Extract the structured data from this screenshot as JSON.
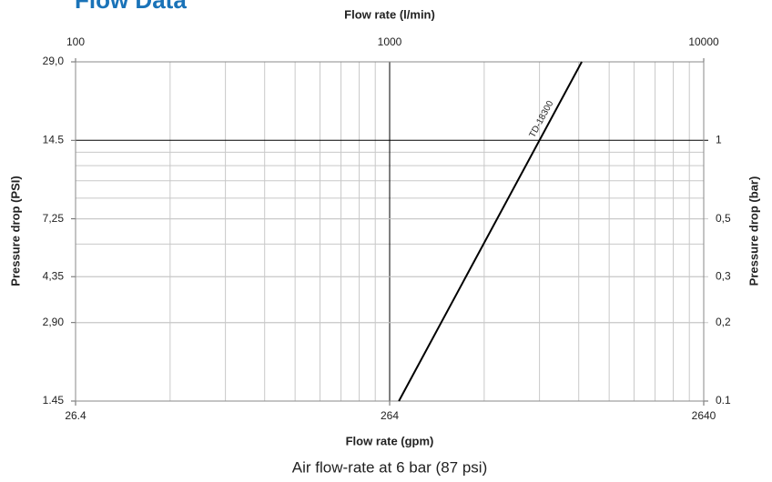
{
  "chart_data": {
    "type": "line",
    "title": "Flow Data",
    "caption": "Air flow-rate at 6 bar (87 psi)",
    "x_label_top": "Flow rate (l/min)",
    "x_label": "Flow rate (gpm)",
    "y_label": "Pressure drop (PSI)",
    "y2_label": "Pressure drop (bar)",
    "log_scale": true,
    "grid": true,
    "xlim": [
      100,
      10000
    ],
    "xticks": [
      100,
      1000,
      10000
    ],
    "x2lim": [
      26.4,
      2640
    ],
    "x2ticks": [
      26.4,
      264,
      2640
    ],
    "ylim": [
      1.45,
      29
    ],
    "yticks": [
      1.45,
      {
        "value": 2.9,
        "label": "2,90"
      },
      {
        "value": 4.35,
        "label": "4,35"
      },
      {
        "value": 7.25,
        "label": "7,25"
      },
      14.5,
      {
        "value": 29,
        "label": "29,0"
      }
    ],
    "y2lim": [
      0.1,
      2
    ],
    "y2ticks": [
      0.1,
      {
        "value": 0.2,
        "label": "0,2"
      },
      {
        "value": 0.3,
        "label": "0,3"
      },
      {
        "value": 0.5,
        "label": "0,5"
      },
      1
    ],
    "series": [
      {
        "name": "TD-18300",
        "color": "#000000",
        "x": [
          1070,
          4090
        ],
        "values": [
          1.45,
          29
        ]
      }
    ]
  }
}
